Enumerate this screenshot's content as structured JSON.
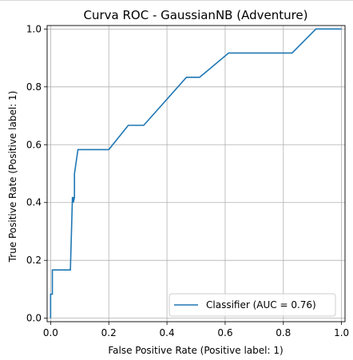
{
  "chart_data": {
    "type": "line",
    "title": "Curva ROC - GaussianNB (Adventure)",
    "xlabel": "False Positive Rate (Positive label: 1)",
    "ylabel": "True Positive Rate (Positive label: 1)",
    "xlim": [
      0,
      1
    ],
    "ylim": [
      0,
      1
    ],
    "xticks": [
      "0.0",
      "0.2",
      "0.4",
      "0.6",
      "0.8",
      "1.0"
    ],
    "yticks": [
      "0.0",
      "0.2",
      "0.4",
      "0.6",
      "0.8",
      "1.0"
    ],
    "grid": true,
    "legend_placement": "lower-right",
    "series": [
      {
        "name": "Classifier (AUC = 0.76)",
        "color": "#1f77b4",
        "x": [
          0.0,
          0.0,
          0.006,
          0.006,
          0.008,
          0.008,
          0.068,
          0.075,
          0.078,
          0.078,
          0.082,
          0.082,
          0.094,
          0.094,
          0.2,
          0.267,
          0.32,
          0.467,
          0.512,
          0.612,
          0.83,
          0.912,
          1.0
        ],
        "y": [
          0.0,
          0.083,
          0.083,
          0.167,
          0.167,
          0.167,
          0.167,
          0.417,
          0.417,
          0.4,
          0.417,
          0.5,
          0.583,
          0.583,
          0.583,
          0.667,
          0.667,
          0.833,
          0.833,
          0.917,
          0.917,
          1.0,
          1.0
        ]
      }
    ]
  }
}
